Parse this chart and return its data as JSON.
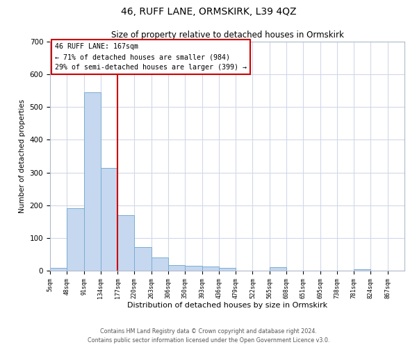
{
  "title": "46, RUFF LANE, ORMSKIRK, L39 4QZ",
  "subtitle": "Size of property relative to detached houses in Ormskirk",
  "xlabel": "Distribution of detached houses by size in Ormskirk",
  "ylabel": "Number of detached properties",
  "bar_values": [
    8,
    190,
    545,
    315,
    170,
    73,
    40,
    18,
    14,
    12,
    8,
    0,
    0,
    10,
    0,
    1,
    0,
    0,
    5,
    0,
    0
  ],
  "bin_labels": [
    "5sqm",
    "48sqm",
    "91sqm",
    "134sqm",
    "177sqm",
    "220sqm",
    "263sqm",
    "306sqm",
    "350sqm",
    "393sqm",
    "436sqm",
    "479sqm",
    "522sqm",
    "565sqm",
    "608sqm",
    "651sqm",
    "695sqm",
    "738sqm",
    "781sqm",
    "824sqm",
    "867sqm"
  ],
  "bar_color": "#c5d8ef",
  "bar_edge_color": "#7aadd4",
  "vline_color": "#cc0000",
  "ylim": [
    0,
    700
  ],
  "yticks": [
    0,
    100,
    200,
    300,
    400,
    500,
    600,
    700
  ],
  "annotation_text": "46 RUFF LANE: 167sqm\n← 71% of detached houses are smaller (984)\n29% of semi-detached houses are larger (399) →",
  "annotation_box_color": "#ffffff",
  "annotation_box_edge": "#cc0000",
  "footer_line1": "Contains HM Land Registry data © Crown copyright and database right 2024.",
  "footer_line2": "Contains public sector information licensed under the Open Government Licence v3.0.",
  "background_color": "#ffffff",
  "grid_color": "#d0d8e8"
}
